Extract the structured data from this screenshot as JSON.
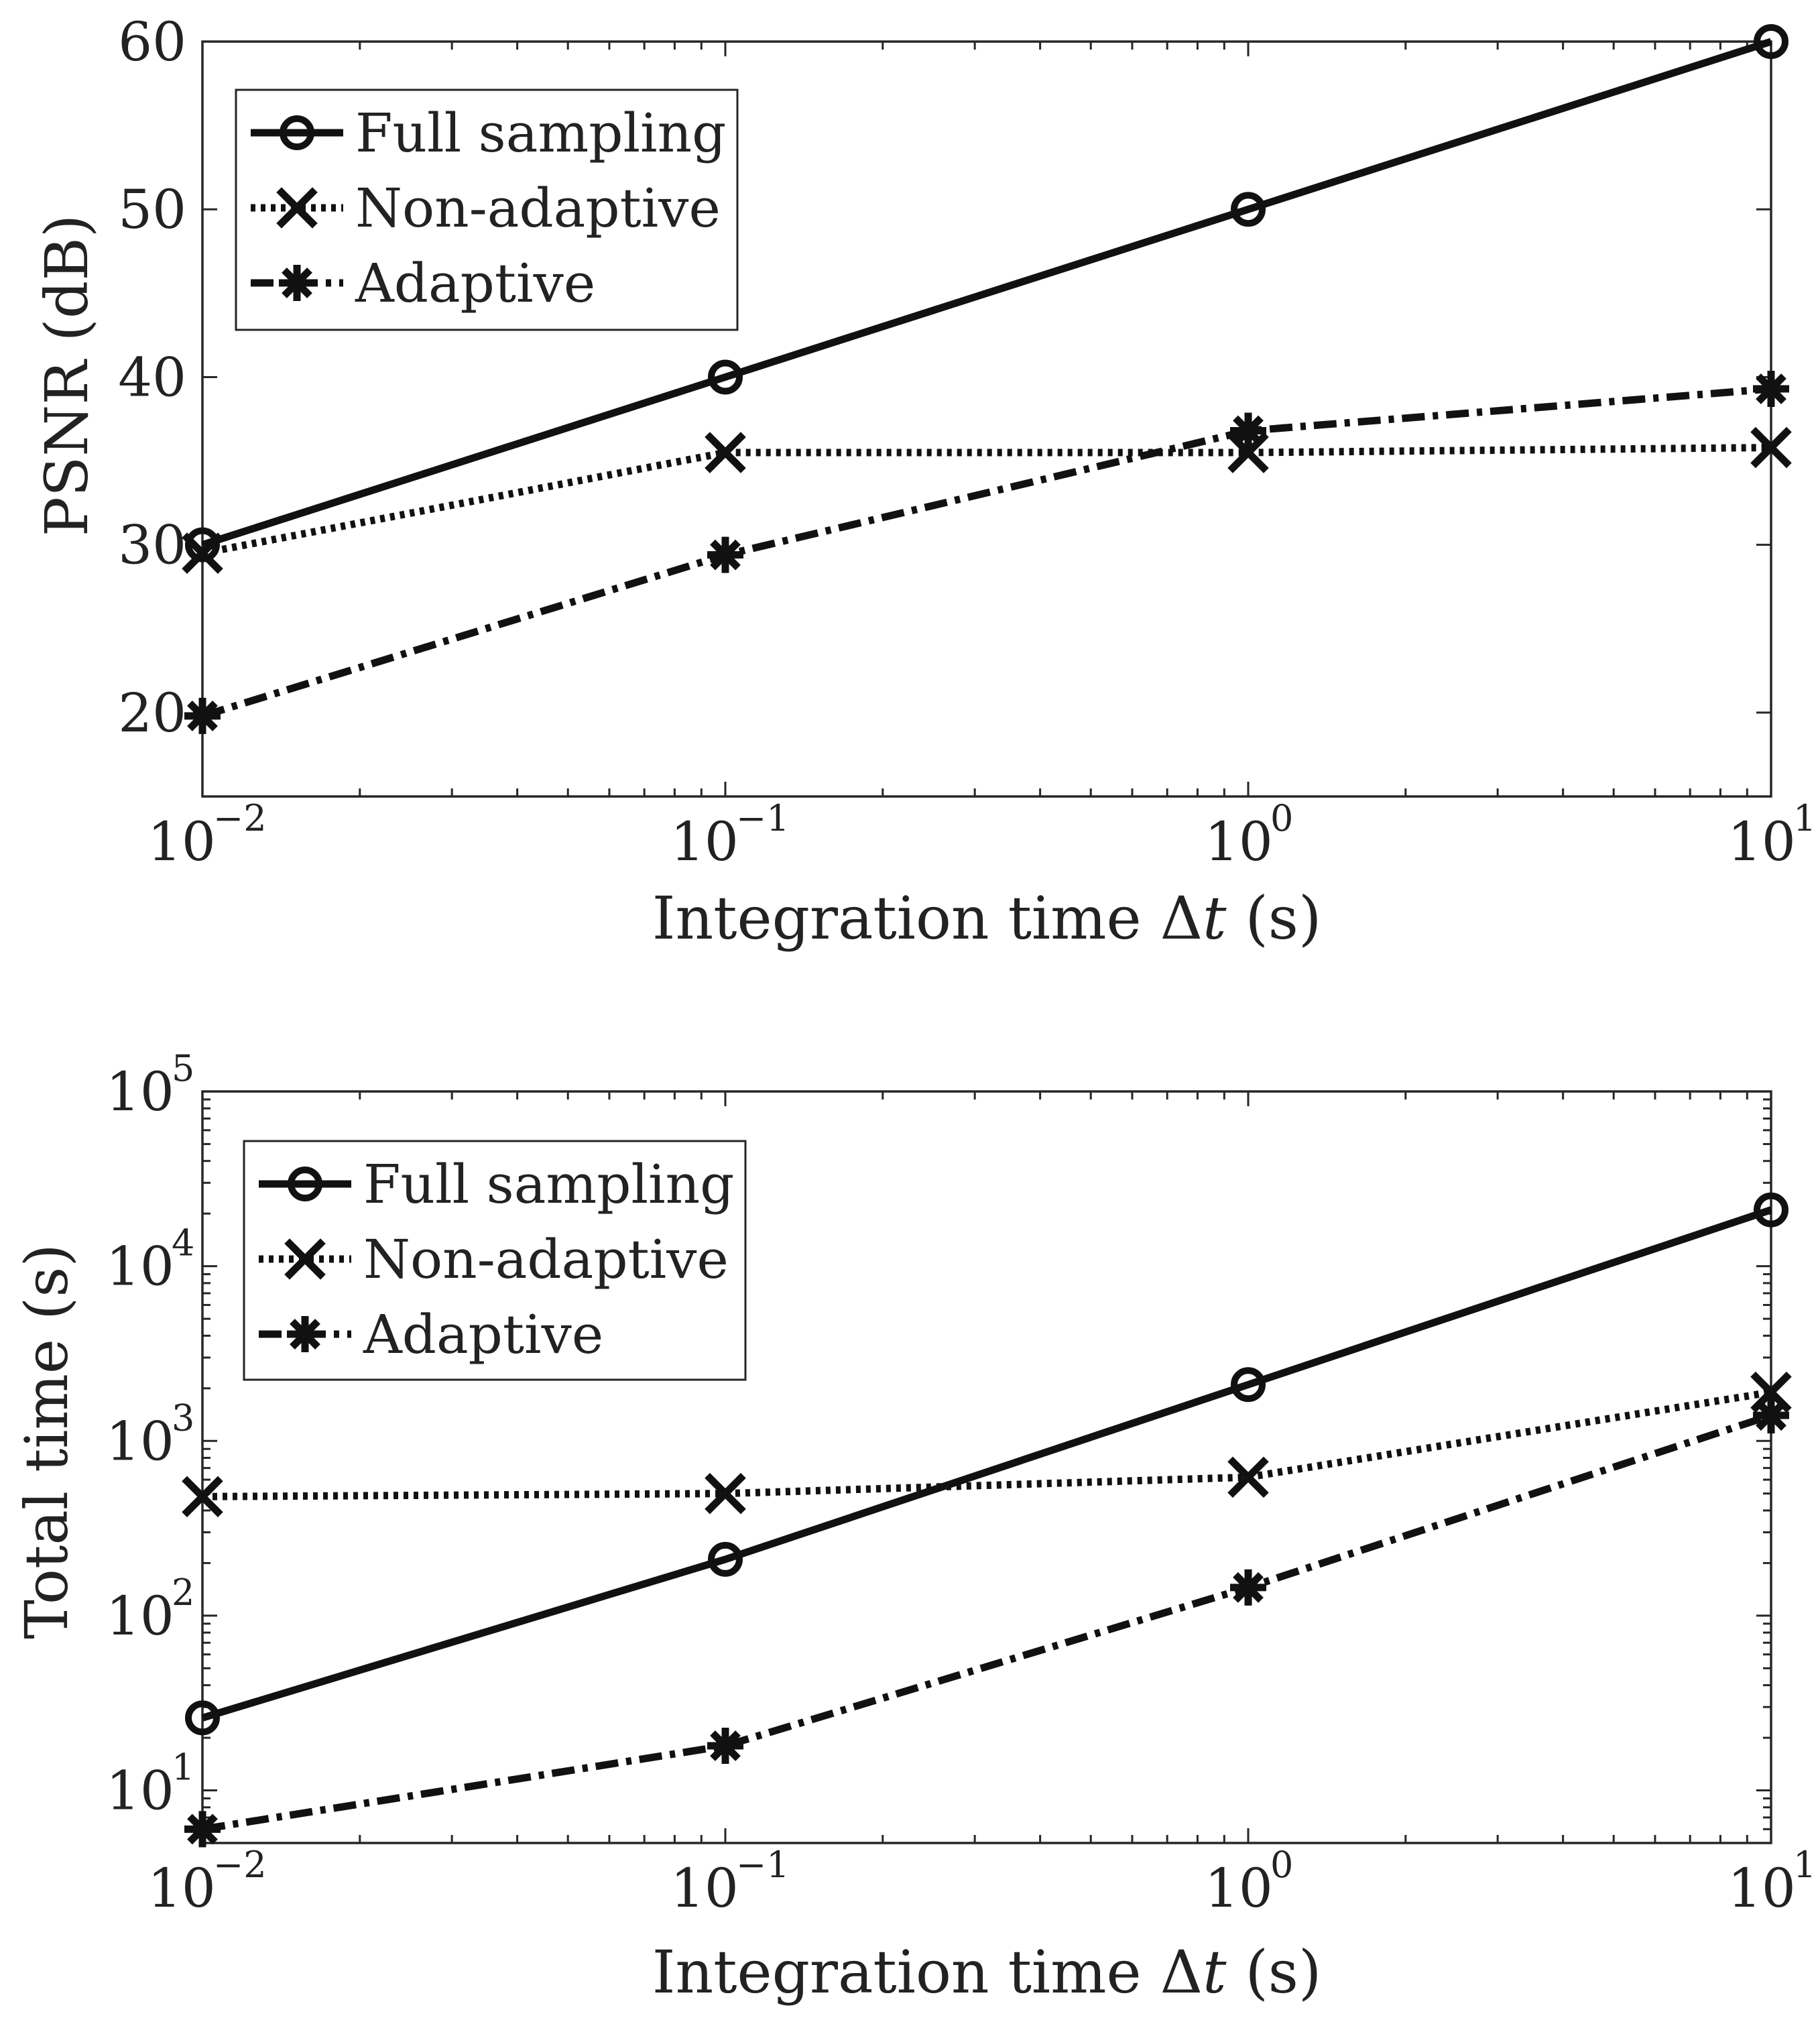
{
  "chart_data": [
    {
      "type": "line",
      "id": "psnr",
      "xscale": "log",
      "yscale": "linear",
      "x": [
        0.01,
        0.1,
        1,
        10
      ],
      "xlim": [
        0.01,
        10
      ],
      "ylim": [
        15,
        60
      ],
      "xlabel": "Integration time Δt (s)",
      "xlabel_parts": {
        "prefix": "Integration time ",
        "symbol": "Δ",
        "variable": "t",
        "suffix": " (s)"
      },
      "ylabel": "PSNR (dB)",
      "xticks": [
        {
          "value": 0.01,
          "base": "10",
          "exp": "−2"
        },
        {
          "value": 0.1,
          "base": "10",
          "exp": "−1"
        },
        {
          "value": 1,
          "base": "10",
          "exp": "0"
        },
        {
          "value": 10,
          "base": "10",
          "exp": "1"
        }
      ],
      "yticks": [
        {
          "value": 20,
          "label": "20"
        },
        {
          "value": 30,
          "label": "30"
        },
        {
          "value": 40,
          "label": "40"
        },
        {
          "value": 50,
          "label": "50"
        },
        {
          "value": 60,
          "label": "60"
        }
      ],
      "legend_position": "top-left",
      "series": [
        {
          "name": "Full sampling",
          "marker": "circle",
          "line": "solid",
          "values": [
            30,
            40,
            50,
            60
          ]
        },
        {
          "name": "Non-adaptive",
          "marker": "x",
          "line": "dotted",
          "values": [
            29.5,
            35.5,
            35.5,
            35.8
          ]
        },
        {
          "name": "Adaptive",
          "marker": "star",
          "line": "dashdot",
          "values": [
            19.8,
            29.4,
            36.8,
            39.3
          ]
        }
      ]
    },
    {
      "type": "line",
      "id": "time",
      "xscale": "log",
      "yscale": "log",
      "x": [
        0.01,
        0.1,
        1,
        10
      ],
      "xlim": [
        0.01,
        10
      ],
      "ylim": [
        5,
        100000
      ],
      "xlabel": "Integration time Δt (s)",
      "xlabel_parts": {
        "prefix": "Integration time ",
        "symbol": "Δ",
        "variable": "t",
        "suffix": " (s)"
      },
      "ylabel": "Total time (s)",
      "xticks": [
        {
          "value": 0.01,
          "base": "10",
          "exp": "−2"
        },
        {
          "value": 0.1,
          "base": "10",
          "exp": "−1"
        },
        {
          "value": 1,
          "base": "10",
          "exp": "0"
        },
        {
          "value": 10,
          "base": "10",
          "exp": "1"
        }
      ],
      "yticks": [
        {
          "value": 10,
          "base": "10",
          "exp": "1"
        },
        {
          "value": 100,
          "base": "10",
          "exp": "2"
        },
        {
          "value": 1000,
          "base": "10",
          "exp": "3"
        },
        {
          "value": 10000,
          "base": "10",
          "exp": "4"
        },
        {
          "value": 100000,
          "base": "10",
          "exp": "5"
        }
      ],
      "legend_position": "top-left",
      "series": [
        {
          "name": "Full sampling",
          "marker": "circle",
          "line": "solid",
          "values": [
            26,
            210,
            2100,
            21000
          ]
        },
        {
          "name": "Non-adaptive",
          "marker": "x",
          "line": "dotted",
          "values": [
            480,
            500,
            620,
            1900
          ]
        },
        {
          "name": "Adaptive",
          "marker": "star",
          "line": "dashdot",
          "values": [
            6,
            18,
            145,
            1400
          ]
        }
      ]
    }
  ]
}
